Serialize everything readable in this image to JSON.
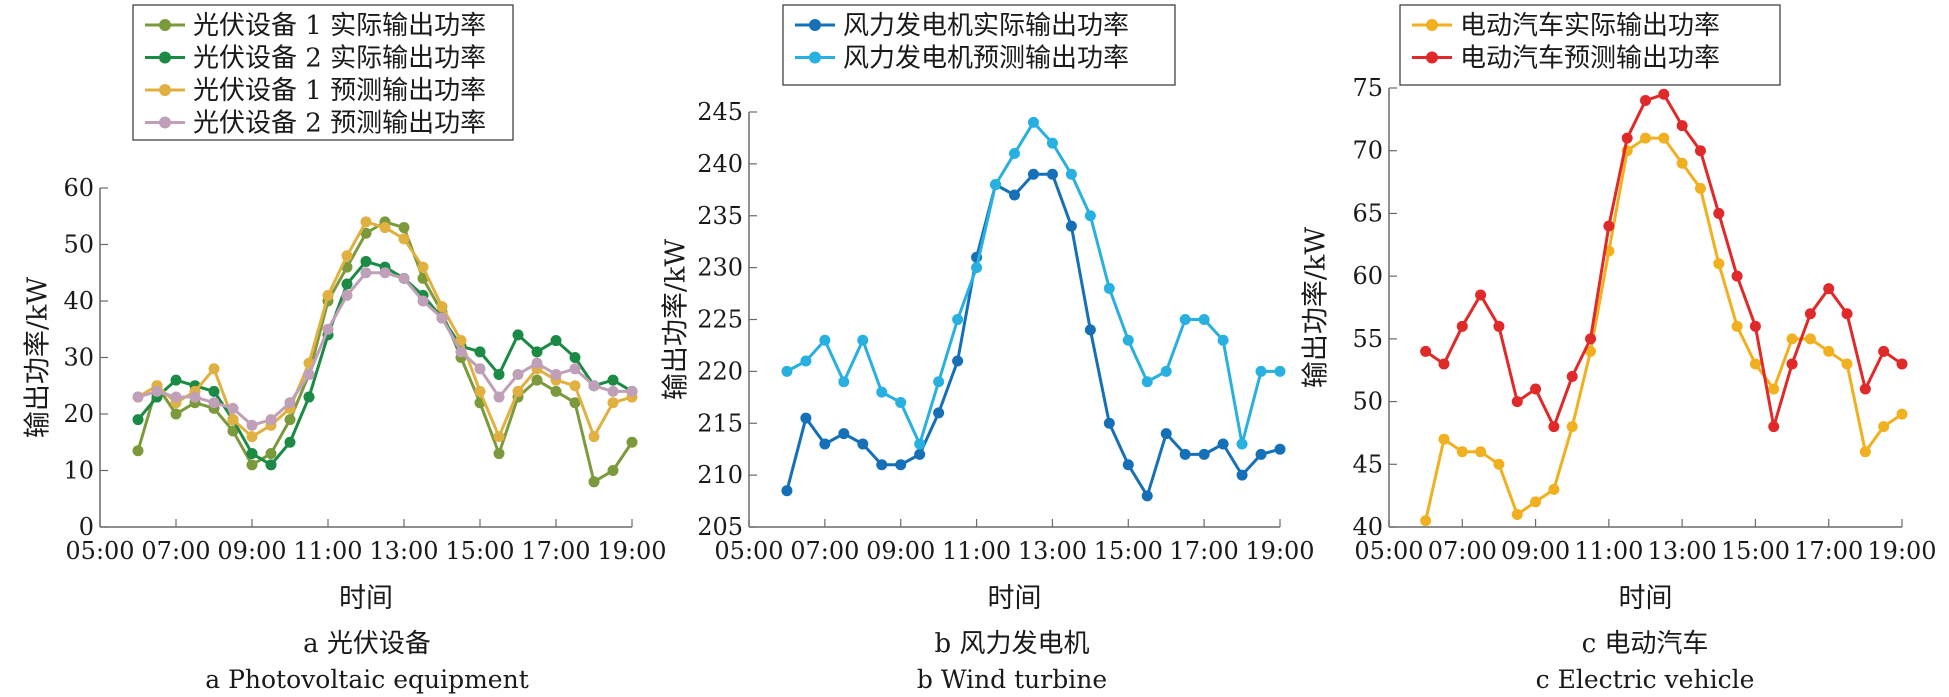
{
  "chart_data": [
    {
      "type": "line",
      "caption_cn": "a  光伏设备",
      "caption_en": "a  Photovoltaic equipment",
      "xlabel": "时间",
      "ylabel": "输出功率/kW",
      "xlim": [
        "05:00",
        "19:00"
      ],
      "x_ticks": [
        "05:00",
        "07:00",
        "09:00",
        "11:00",
        "13:00",
        "15:00",
        "17:00",
        "19:00"
      ],
      "ylim": [
        0,
        60
      ],
      "y_ticks": [
        0,
        10,
        20,
        30,
        40,
        50,
        60
      ],
      "grid": false,
      "legend_position": "top",
      "series_x": [
        "06:00",
        "06:30",
        "07:00",
        "07:30",
        "08:00",
        "08:30",
        "09:00",
        "09:30",
        "10:00",
        "10:30",
        "11:00",
        "11:30",
        "12:00",
        "12:30",
        "13:00",
        "13:30",
        "14:00",
        "14:30",
        "15:00",
        "15:30",
        "16:00",
        "16:30",
        "17:00",
        "17:30",
        "18:00",
        "18:30",
        "19:00"
      ],
      "series": [
        {
          "name": "光伏设备 1 实际输出功率",
          "color": "#7a9a3c",
          "values": [
            13.5,
            25,
            20,
            22,
            21,
            17,
            11,
            13,
            19,
            27,
            40,
            46,
            52,
            54,
            53,
            44,
            38,
            30,
            22,
            13,
            23,
            26,
            24,
            22,
            8,
            10,
            15
          ]
        },
        {
          "name": "光伏设备 2 实际输出功率",
          "color": "#1a8a44",
          "values": [
            19,
            23,
            26,
            25,
            24,
            19,
            13,
            11,
            15,
            23,
            34,
            43,
            47,
            46,
            44,
            41,
            37,
            32,
            31,
            27,
            34,
            31,
            33,
            30,
            25,
            26,
            24
          ]
        },
        {
          "name": "光伏设备 1 预测输出功率",
          "color": "#e0b040",
          "values": [
            23,
            25,
            22,
            24,
            28,
            19,
            16,
            18,
            21,
            29,
            41,
            48,
            54,
            53,
            51,
            46,
            39,
            33,
            24,
            16,
            24,
            28,
            26,
            25,
            16,
            22,
            23
          ]
        },
        {
          "name": "光伏设备 2 预测输出功率",
          "color": "#c0a0b8",
          "values": [
            23,
            24,
            23,
            23,
            22,
            21,
            18,
            19,
            22,
            27,
            35,
            41,
            45,
            45,
            44,
            40,
            37,
            31,
            28,
            23,
            27,
            29,
            27,
            28,
            25,
            24,
            24
          ]
        }
      ]
    },
    {
      "type": "line",
      "caption_cn": "b  风力发电机",
      "caption_en": "b  Wind turbine",
      "xlabel": "时间",
      "ylabel": "输出功率/kW",
      "xlim": [
        "05:00",
        "19:00"
      ],
      "x_ticks": [
        "05:00",
        "07:00",
        "09:00",
        "11:00",
        "13:00",
        "15:00",
        "17:00",
        "19:00"
      ],
      "ylim": [
        205,
        245
      ],
      "y_ticks": [
        205,
        210,
        215,
        220,
        225,
        230,
        235,
        240,
        245
      ],
      "grid": false,
      "legend_position": "top",
      "series_x": [
        "06:00",
        "06:30",
        "07:00",
        "07:30",
        "08:00",
        "08:30",
        "09:00",
        "09:30",
        "10:00",
        "10:30",
        "11:00",
        "11:30",
        "12:00",
        "12:30",
        "13:00",
        "13:30",
        "14:00",
        "14:30",
        "15:00",
        "15:30",
        "16:00",
        "16:30",
        "17:00",
        "17:30",
        "18:00",
        "18:30",
        "19:00"
      ],
      "series": [
        {
          "name": "风力发电机实际输出功率",
          "color": "#1570b8",
          "values": [
            208.5,
            215.5,
            213,
            214,
            213,
            211,
            211,
            212,
            216,
            221,
            231,
            238,
            237,
            239,
            239,
            234,
            224,
            215,
            211,
            208,
            214,
            212,
            212,
            213,
            210,
            212,
            212.5
          ]
        },
        {
          "name": "风力发电机预测输出功率",
          "color": "#28b0e0",
          "values": [
            220,
            221,
            223,
            219,
            223,
            218,
            217,
            213,
            219,
            225,
            230,
            238,
            241,
            244,
            242,
            239,
            235,
            228,
            223,
            219,
            220,
            225,
            225,
            223,
            213,
            220,
            220
          ]
        }
      ]
    },
    {
      "type": "line",
      "caption_cn": "c  电动汽车",
      "caption_en": "c  Electric vehicle",
      "xlabel": "时间",
      "ylabel": "输出功率/kW",
      "xlim": [
        "05:00",
        "19:00"
      ],
      "x_ticks": [
        "05:00",
        "07:00",
        "09:00",
        "11:00",
        "13:00",
        "15:00",
        "17:00",
        "19:00"
      ],
      "ylim": [
        40,
        75
      ],
      "y_ticks": [
        40,
        45,
        50,
        55,
        60,
        65,
        70,
        75
      ],
      "grid": false,
      "legend_position": "top",
      "series_x": [
        "06:00",
        "06:30",
        "07:00",
        "07:30",
        "08:00",
        "08:30",
        "09:00",
        "09:30",
        "10:00",
        "10:30",
        "11:00",
        "11:30",
        "12:00",
        "12:30",
        "13:00",
        "13:30",
        "14:00",
        "14:30",
        "15:00",
        "15:30",
        "16:00",
        "16:30",
        "17:00",
        "17:30",
        "18:00",
        "18:30",
        "19:00"
      ],
      "series": [
        {
          "name": "电动汽车实际输出功率",
          "color": "#f0b020",
          "values": [
            40.5,
            47,
            46,
            46,
            45,
            41,
            42,
            43,
            48,
            54,
            62,
            70,
            71,
            71,
            69,
            67,
            61,
            56,
            53,
            51,
            55,
            55,
            54,
            53,
            46,
            48,
            49
          ]
        },
        {
          "name": "电动汽车预测输出功率",
          "color": "#e02a2a",
          "values": [
            54,
            53,
            56,
            58.5,
            56,
            50,
            51,
            48,
            52,
            55,
            64,
            71,
            74,
            74.5,
            72,
            70,
            65,
            60,
            56,
            48,
            53,
            57,
            59,
            57,
            51,
            54,
            53
          ]
        }
      ]
    }
  ]
}
